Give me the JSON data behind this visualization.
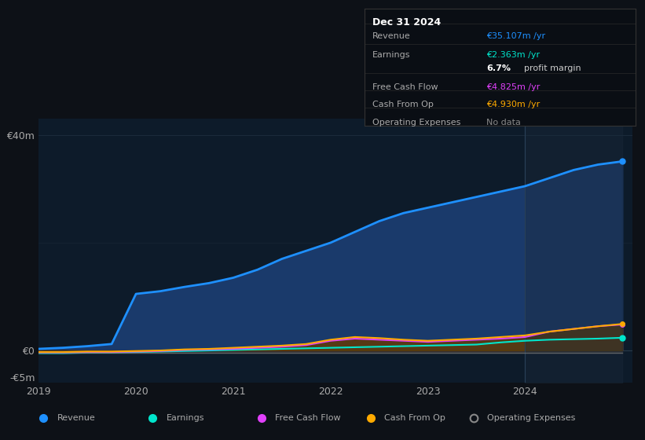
{
  "bg_color": "#0d1117",
  "plot_bg": "#0d1b2a",
  "years": [
    2019.0,
    2019.25,
    2019.5,
    2019.75,
    2020.0,
    2020.25,
    2020.5,
    2020.75,
    2021.0,
    2021.25,
    2021.5,
    2021.75,
    2022.0,
    2022.25,
    2022.5,
    2022.75,
    2023.0,
    2023.25,
    2023.5,
    2023.75,
    2024.0,
    2024.25,
    2024.5,
    2024.75,
    2025.0
  ],
  "revenue": [
    0.3,
    0.5,
    0.8,
    1.2,
    10.5,
    11.0,
    11.8,
    12.5,
    13.5,
    15.0,
    17.0,
    18.5,
    20.0,
    22.0,
    24.0,
    25.5,
    26.5,
    27.5,
    28.5,
    29.5,
    30.5,
    32.0,
    33.5,
    34.5,
    35.1
  ],
  "earnings": [
    -0.5,
    -0.5,
    -0.4,
    -0.4,
    -0.3,
    -0.2,
    -0.1,
    0.0,
    0.1,
    0.2,
    0.3,
    0.4,
    0.5,
    0.6,
    0.7,
    0.8,
    0.9,
    1.0,
    1.1,
    1.5,
    1.8,
    2.0,
    2.1,
    2.2,
    2.363
  ],
  "free_cash_flow": [
    -0.4,
    -0.4,
    -0.3,
    -0.3,
    -0.2,
    -0.1,
    0.1,
    0.2,
    0.3,
    0.5,
    0.7,
    1.0,
    1.8,
    2.2,
    2.0,
    1.8,
    1.6,
    1.8,
    2.0,
    2.2,
    2.5,
    3.5,
    4.0,
    4.5,
    4.825
  ],
  "cash_from_op": [
    -0.3,
    -0.3,
    -0.2,
    -0.2,
    -0.1,
    0.0,
    0.2,
    0.3,
    0.5,
    0.7,
    0.9,
    1.2,
    2.0,
    2.5,
    2.3,
    2.0,
    1.8,
    2.0,
    2.2,
    2.5,
    2.8,
    3.5,
    4.0,
    4.5,
    4.93
  ],
  "op_expenses": [
    -0.5,
    -0.5,
    -0.5,
    -0.5,
    -0.5,
    -0.5,
    -0.5,
    -0.5,
    -0.5,
    -0.5,
    -0.5,
    -0.5,
    -0.5,
    -0.5,
    -0.5,
    -0.5,
    -0.5,
    -0.5,
    -0.5,
    -0.5,
    -0.5,
    -0.5,
    -0.5,
    -0.5,
    -0.5
  ],
  "revenue_color": "#1e90ff",
  "revenue_fill": "#1a3a6b",
  "earnings_color": "#00e5cc",
  "earnings_fill": "#004d44",
  "fcf_color": "#e040fb",
  "fcf_fill": "#5a1a6b",
  "cashop_color": "#ffaa00",
  "cashop_fill": "#5a4000",
  "opex_color": "#888888",
  "opex_fill": "#333333",
  "forecast_start": 2024.0,
  "ylim": [
    -6,
    43
  ],
  "yticks": [
    -5,
    0,
    40
  ],
  "ytick_labels": [
    "-€5m",
    "€0",
    "€40m"
  ],
  "xticks": [
    2019,
    2020,
    2021,
    2022,
    2023,
    2024
  ],
  "grid_color": "#2a3a4a",
  "text_color": "#aaaaaa",
  "info_box": {
    "title": "Dec 31 2024",
    "rows": [
      {
        "label": "Revenue",
        "value": "€35.107m /yr",
        "value_color": "#1e90ff"
      },
      {
        "label": "Earnings",
        "value": "€2.363m /yr",
        "value_color": "#00e5cc"
      },
      {
        "label": "",
        "value": "6.7% profit margin",
        "value_color": "#cccccc",
        "bold_part": "6.7%"
      },
      {
        "label": "Free Cash Flow",
        "value": "€4.825m /yr",
        "value_color": "#e040fb"
      },
      {
        "label": "Cash From Op",
        "value": "€4.930m /yr",
        "value_color": "#ffaa00"
      },
      {
        "label": "Operating Expenses",
        "value": "No data",
        "value_color": "#888888"
      }
    ]
  },
  "legend_items": [
    {
      "label": "Revenue",
      "color": "#1e90ff",
      "filled": true
    },
    {
      "label": "Earnings",
      "color": "#00e5cc",
      "filled": true
    },
    {
      "label": "Free Cash Flow",
      "color": "#e040fb",
      "filled": true
    },
    {
      "label": "Cash From Op",
      "color": "#ffaa00",
      "filled": true
    },
    {
      "label": "Operating Expenses",
      "color": "#888888",
      "filled": false
    }
  ]
}
